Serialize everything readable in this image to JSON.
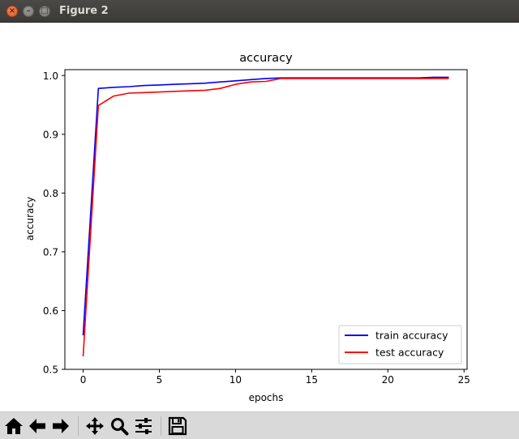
{
  "window": {
    "title": "Figure 2"
  },
  "toolbar": {
    "buttons": [
      "home-icon",
      "back-icon",
      "forward-icon",
      "pan-icon",
      "zoom-icon",
      "configure-subplots-icon",
      "save-icon"
    ]
  },
  "chart_data": {
    "type": "line",
    "title": "accuracy",
    "xlabel": "epochs",
    "ylabel": "accuracy",
    "xlim": [
      -1.2,
      25.2
    ],
    "ylim": [
      0.5,
      1.01
    ],
    "xticks": [
      0,
      5,
      10,
      15,
      20,
      25
    ],
    "yticks": [
      0.5,
      0.6,
      0.7,
      0.8,
      0.9,
      1.0
    ],
    "ytick_labels": [
      "0.5",
      "0.6",
      "0.7",
      "0.8",
      "0.9",
      "1.0"
    ],
    "grid": false,
    "legend_position": "lower-right",
    "x": [
      0,
      1,
      2,
      3,
      4,
      5,
      6,
      7,
      8,
      9,
      10,
      11,
      12,
      13,
      14,
      15,
      16,
      17,
      18,
      19,
      20,
      21,
      22,
      23,
      24
    ],
    "series": [
      {
        "name": "train accuracy",
        "color": "#0000ff",
        "values": [
          0.558,
          0.978,
          0.98,
          0.981,
          0.983,
          0.984,
          0.985,
          0.986,
          0.987,
          0.989,
          0.991,
          0.993,
          0.995,
          0.996,
          0.996,
          0.996,
          0.996,
          0.996,
          0.996,
          0.996,
          0.996,
          0.996,
          0.996,
          0.997,
          0.997
        ]
      },
      {
        "name": "test accuracy",
        "color": "#ff0000",
        "values": [
          0.522,
          0.949,
          0.965,
          0.97,
          0.971,
          0.972,
          0.973,
          0.974,
          0.975,
          0.978,
          0.985,
          0.989,
          0.99,
          0.995,
          0.995,
          0.995,
          0.995,
          0.995,
          0.995,
          0.995,
          0.995,
          0.995,
          0.995,
          0.995,
          0.995
        ]
      }
    ]
  }
}
